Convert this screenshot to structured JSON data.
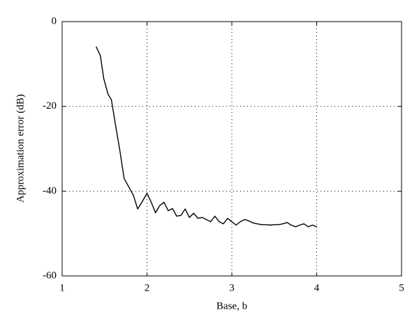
{
  "chart_data": {
    "type": "line",
    "xlabel": "Base, b",
    "ylabel": "Approximation error (dB)",
    "x": [
      1.4,
      1.45,
      1.49,
      1.54,
      1.58,
      1.63,
      1.68,
      1.73,
      1.78,
      1.84,
      1.89,
      1.94,
      2.0,
      2.05,
      2.1,
      2.15,
      2.2,
      2.25,
      2.3,
      2.35,
      2.4,
      2.45,
      2.5,
      2.55,
      2.6,
      2.65,
      2.7,
      2.75,
      2.8,
      2.85,
      2.9,
      2.95,
      3.0,
      3.05,
      3.1,
      3.15,
      3.2,
      3.25,
      3.3,
      3.35,
      3.4,
      3.45,
      3.5,
      3.55,
      3.6,
      3.65,
      3.7,
      3.75,
      3.8,
      3.85,
      3.9,
      3.95,
      4.0
    ],
    "values": [
      -5.9,
      -8,
      -13.4,
      -17.1,
      -18.4,
      -24.5,
      -30.4,
      -37,
      -38.8,
      -41,
      -44.2,
      -42.6,
      -40.5,
      -42.6,
      -45.1,
      -43.4,
      -42.6,
      -44.6,
      -44.1,
      -45.9,
      -45.7,
      -44.2,
      -46.2,
      -45.2,
      -46.4,
      -46.2,
      -46.7,
      -47.2,
      -45.9,
      -47.2,
      -47.7,
      -46.4,
      -47.2,
      -48,
      -47.2,
      -46.7,
      -47,
      -47.5,
      -47.7,
      -47.9,
      -47.9,
      -48,
      -47.9,
      -47.9,
      -47.7,
      -47.4,
      -48,
      -48.4,
      -48,
      -47.7,
      -48.4,
      -48,
      -48.4
    ],
    "color": "#000000",
    "xlim": [
      1,
      5
    ],
    "xticks": [
      1,
      2,
      3,
      4,
      5
    ],
    "ylim": [
      -60,
      0
    ],
    "yticks": [
      -60,
      -40,
      -20,
      0
    ],
    "grid": true
  }
}
